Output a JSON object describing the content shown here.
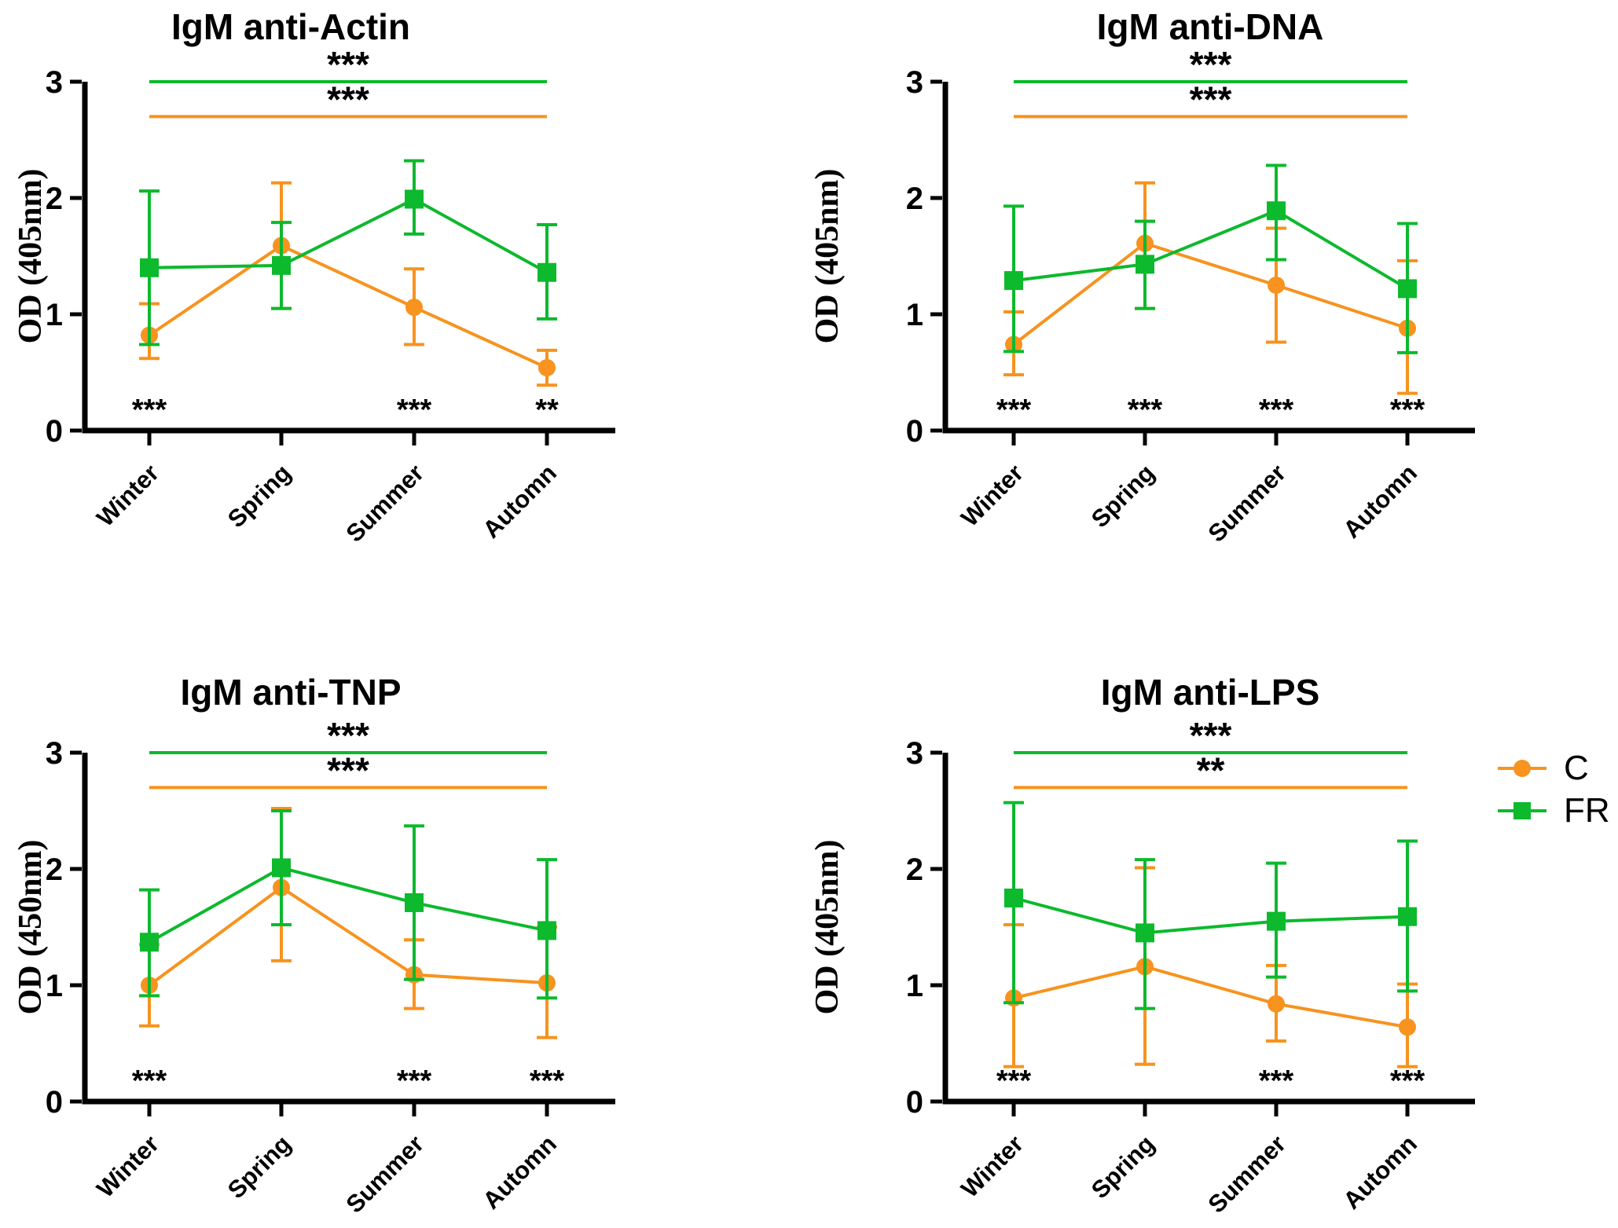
{
  "figure": {
    "background": "#ffffff"
  },
  "colors": {
    "series_c": "#F7931E",
    "series_fr": "#0DB92D",
    "axis": "#000000"
  },
  "legend": {
    "position": "right-middle",
    "items": [
      {
        "label": "C",
        "color": "#F7931E",
        "marker": "circle"
      },
      {
        "label": "FR",
        "color": "#0DB92D",
        "marker": "square"
      }
    ]
  },
  "chart_data": [
    {
      "type": "line",
      "title": "IgM anti-Actin",
      "xlabel": "",
      "ylabel": "OD (405nm)",
      "ylim": [
        0,
        3
      ],
      "yticks": [
        0,
        1,
        2,
        3
      ],
      "grid": false,
      "categories": [
        "Winter",
        "Spring",
        "Summer",
        "Automn"
      ],
      "series": [
        {
          "name": "C",
          "marker": "circle",
          "color": "#F7931E",
          "values": [
            0.82,
            1.59,
            1.06,
            0.54
          ],
          "err_low": [
            0.62,
            1.05,
            0.74,
            0.39
          ],
          "err_high": [
            1.09,
            2.13,
            1.39,
            0.69
          ]
        },
        {
          "name": "FR",
          "marker": "square",
          "color": "#0DB92D",
          "values": [
            1.4,
            1.42,
            1.99,
            1.36
          ],
          "err_low": [
            0.74,
            1.05,
            1.69,
            0.96
          ],
          "err_high": [
            2.06,
            1.79,
            2.32,
            1.77
          ]
        }
      ],
      "top_significance": [
        {
          "series": "FR",
          "label": "***",
          "line_y": 3.0,
          "color": "#0DB92D"
        },
        {
          "series": "C",
          "label": "***",
          "line_y": 2.7,
          "color": "#F7931E"
        }
      ],
      "bottom_significance": [
        "***",
        null,
        "***",
        "**"
      ]
    },
    {
      "type": "line",
      "title": "IgM anti-DNA",
      "xlabel": "",
      "ylabel": "OD (405nm)",
      "ylim": [
        0,
        3
      ],
      "yticks": [
        0,
        1,
        2,
        3
      ],
      "grid": false,
      "categories": [
        "Winter",
        "Spring",
        "Summer",
        "Automn"
      ],
      "series": [
        {
          "name": "C",
          "marker": "circle",
          "color": "#F7931E",
          "values": [
            0.74,
            1.61,
            1.25,
            0.88
          ],
          "err_low": [
            0.48,
            1.05,
            0.76,
            0.32
          ],
          "err_high": [
            1.02,
            2.13,
            1.74,
            1.46
          ]
        },
        {
          "name": "FR",
          "marker": "square",
          "color": "#0DB92D",
          "values": [
            1.29,
            1.43,
            1.89,
            1.22
          ],
          "err_low": [
            0.68,
            1.05,
            1.47,
            0.67
          ],
          "err_high": [
            1.93,
            1.8,
            2.28,
            1.78
          ]
        }
      ],
      "top_significance": [
        {
          "series": "FR",
          "label": "***",
          "line_y": 3.0,
          "color": "#0DB92D"
        },
        {
          "series": "C",
          "label": "***",
          "line_y": 2.7,
          "color": "#F7931E"
        }
      ],
      "bottom_significance": [
        "***",
        "***",
        "***",
        "***"
      ]
    },
    {
      "type": "line",
      "title": "IgM anti-TNP",
      "xlabel": "",
      "ylabel": "OD (450nm)",
      "ylim": [
        0,
        3
      ],
      "yticks": [
        0,
        1,
        2,
        3
      ],
      "grid": false,
      "categories": [
        "Winter",
        "Spring",
        "Summer",
        "Automn"
      ],
      "series": [
        {
          "name": "C",
          "marker": "circle",
          "color": "#F7931E",
          "values": [
            1.0,
            1.84,
            1.09,
            1.02
          ],
          "err_low": [
            0.65,
            1.21,
            0.8,
            0.55
          ],
          "err_high": [
            1.35,
            2.52,
            1.39,
            1.5
          ]
        },
        {
          "name": "FR",
          "marker": "square",
          "color": "#0DB92D",
          "values": [
            1.37,
            2.01,
            1.71,
            1.47
          ],
          "err_low": [
            0.91,
            1.52,
            1.05,
            0.89
          ],
          "err_high": [
            1.82,
            2.5,
            2.37,
            2.08
          ]
        }
      ],
      "top_significance": [
        {
          "series": "FR",
          "label": "***",
          "line_y": 3.0,
          "color": "#0DB92D"
        },
        {
          "series": "C",
          "label": "***",
          "line_y": 2.7,
          "color": "#F7931E"
        }
      ],
      "bottom_significance": [
        "***",
        null,
        "***",
        "***"
      ]
    },
    {
      "type": "line",
      "title": "IgM anti-LPS",
      "xlabel": "",
      "ylabel": "OD (405nm)",
      "ylim": [
        0,
        3
      ],
      "yticks": [
        0,
        1,
        2,
        3
      ],
      "grid": false,
      "categories": [
        "Winter",
        "Spring",
        "Summer",
        "Automn"
      ],
      "series": [
        {
          "name": "C",
          "marker": "circle",
          "color": "#F7931E",
          "values": [
            0.89,
            1.16,
            0.84,
            0.64
          ],
          "err_low": [
            0.3,
            0.32,
            0.52,
            0.3
          ],
          "err_high": [
            1.52,
            2.01,
            1.17,
            1.01
          ]
        },
        {
          "name": "FR",
          "marker": "square",
          "color": "#0DB92D",
          "values": [
            1.75,
            1.45,
            1.55,
            1.59
          ],
          "err_low": [
            0.85,
            0.8,
            1.07,
            0.95
          ],
          "err_high": [
            2.57,
            2.08,
            2.05,
            2.24
          ]
        }
      ],
      "top_significance": [
        {
          "series": "FR",
          "label": "***",
          "line_y": 3.0,
          "color": "#0DB92D"
        },
        {
          "series": "C",
          "label": "**",
          "line_y": 2.7,
          "color": "#F7931E"
        }
      ],
      "bottom_significance": [
        "***",
        null,
        "***",
        "***"
      ]
    }
  ]
}
